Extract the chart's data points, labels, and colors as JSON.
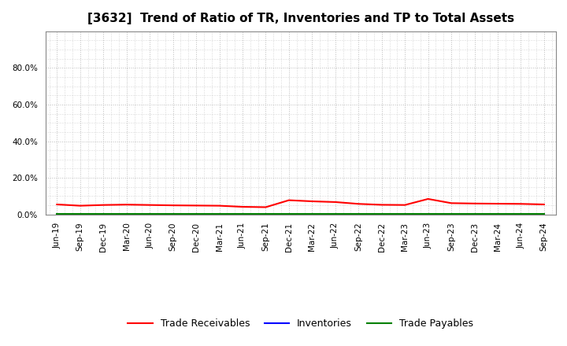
{
  "title": "[3632]  Trend of Ratio of TR, Inventories and TP to Total Assets",
  "x_labels": [
    "Jun-19",
    "Sep-19",
    "Dec-19",
    "Mar-20",
    "Jun-20",
    "Sep-20",
    "Dec-20",
    "Mar-21",
    "Jun-21",
    "Sep-21",
    "Dec-21",
    "Mar-22",
    "Jun-22",
    "Sep-22",
    "Dec-22",
    "Mar-23",
    "Jun-23",
    "Sep-23",
    "Dec-23",
    "Mar-24",
    "Jun-24",
    "Sep-24"
  ],
  "trade_receivables": [
    0.055,
    0.048,
    0.052,
    0.054,
    0.052,
    0.05,
    0.049,
    0.048,
    0.042,
    0.04,
    0.078,
    0.072,
    0.068,
    0.058,
    0.053,
    0.052,
    0.085,
    0.062,
    0.06,
    0.059,
    0.058,
    0.055
  ],
  "inventories": [
    0.001,
    0.001,
    0.001,
    0.001,
    0.001,
    0.001,
    0.001,
    0.001,
    0.001,
    0.001,
    0.001,
    0.001,
    0.001,
    0.001,
    0.001,
    0.001,
    0.001,
    0.001,
    0.001,
    0.001,
    0.001,
    0.001
  ],
  "trade_payables": [
    0.002,
    0.002,
    0.002,
    0.002,
    0.002,
    0.002,
    0.002,
    0.002,
    0.002,
    0.002,
    0.002,
    0.002,
    0.002,
    0.002,
    0.002,
    0.002,
    0.002,
    0.002,
    0.002,
    0.002,
    0.002,
    0.002
  ],
  "tr_color": "#FF0000",
  "inv_color": "#0000FF",
  "tp_color": "#008000",
  "ylim": [
    0.0,
    1.0
  ],
  "yticks": [
    0.0,
    0.2,
    0.4,
    0.6,
    0.8
  ],
  "background_color": "#FFFFFF",
  "plot_bg_color": "#FFFFFF",
  "grid_color": "#BBBBBB",
  "title_fontsize": 11,
  "tick_fontsize": 7.5,
  "legend_fontsize": 9,
  "legend_labels": [
    "Trade Receivables",
    "Inventories",
    "Trade Payables"
  ]
}
